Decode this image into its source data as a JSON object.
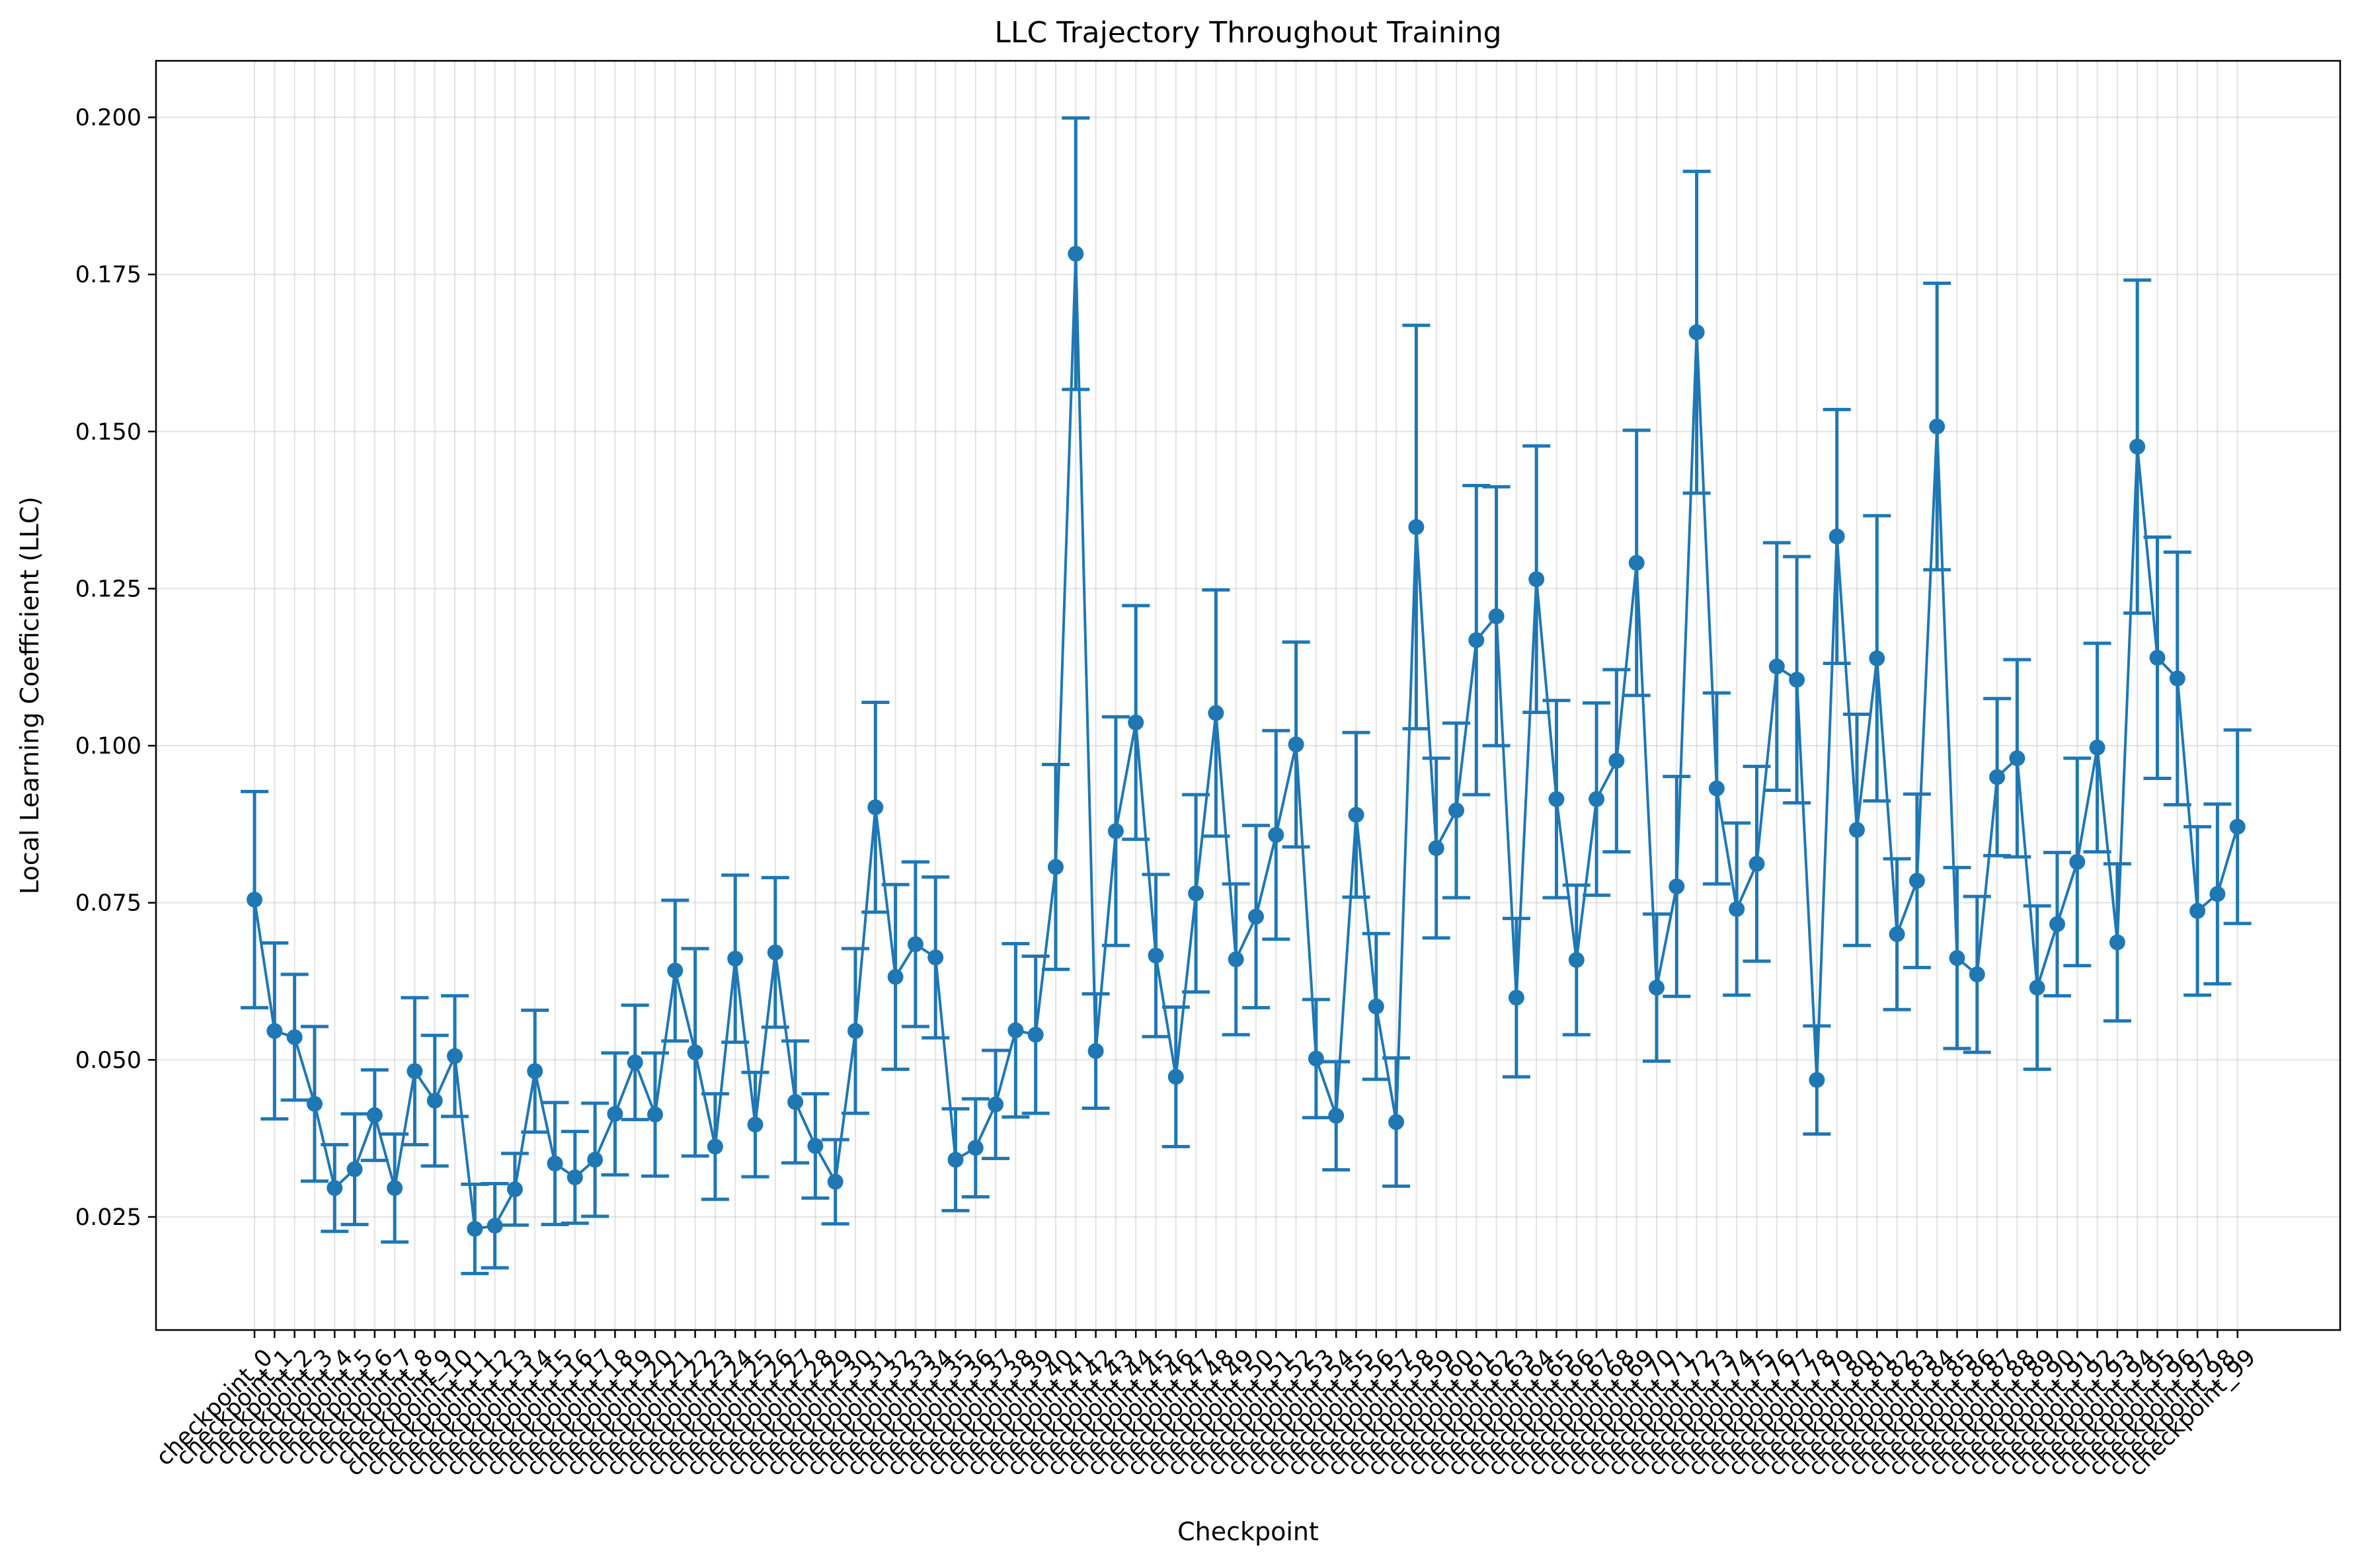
{
  "chart_data": {
    "type": "line",
    "title": "LLC Trajectory Throughout Training",
    "xlabel": "Checkpoint",
    "ylabel": "Local Learning Coefficient (LLC)",
    "ylim": [
      0.007,
      0.209
    ],
    "yticks": [
      0.025,
      0.05,
      0.075,
      0.1,
      0.125,
      0.15,
      0.175,
      0.2
    ],
    "ytick_labels": [
      "0.025",
      "0.050",
      "0.075",
      "0.100",
      "0.125",
      "0.150",
      "0.175",
      "0.200"
    ],
    "grid": true,
    "colors": {
      "series": "#1f77b4"
    },
    "categories": [
      "checkpoint_0",
      "checkpoint_1",
      "checkpoint_2",
      "checkpoint_3",
      "checkpoint_4",
      "checkpoint_5",
      "checkpoint_6",
      "checkpoint_7",
      "checkpoint_8",
      "checkpoint_9",
      "checkpoint_10",
      "checkpoint_11",
      "checkpoint_12",
      "checkpoint_13",
      "checkpoint_14",
      "checkpoint_15",
      "checkpoint_16",
      "checkpoint_17",
      "checkpoint_18",
      "checkpoint_19",
      "checkpoint_20",
      "checkpoint_21",
      "checkpoint_22",
      "checkpoint_23",
      "checkpoint_24",
      "checkpoint_25",
      "checkpoint_26",
      "checkpoint_27",
      "checkpoint_28",
      "checkpoint_29",
      "checkpoint_30",
      "checkpoint_31",
      "checkpoint_32",
      "checkpoint_33",
      "checkpoint_34",
      "checkpoint_35",
      "checkpoint_36",
      "checkpoint_37",
      "checkpoint_38",
      "checkpoint_39",
      "checkpoint_40",
      "checkpoint_41",
      "checkpoint_42",
      "checkpoint_43",
      "checkpoint_44",
      "checkpoint_45",
      "checkpoint_46",
      "checkpoint_47",
      "checkpoint_48",
      "checkpoint_49",
      "checkpoint_50",
      "checkpoint_51",
      "checkpoint_52",
      "checkpoint_53",
      "checkpoint_54",
      "checkpoint_55",
      "checkpoint_56",
      "checkpoint_57",
      "checkpoint_58",
      "checkpoint_59",
      "checkpoint_60",
      "checkpoint_61",
      "checkpoint_62",
      "checkpoint_63",
      "checkpoint_64",
      "checkpoint_65",
      "checkpoint_66",
      "checkpoint_67",
      "checkpoint_68",
      "checkpoint_69",
      "checkpoint_70",
      "checkpoint_71",
      "checkpoint_72",
      "checkpoint_73",
      "checkpoint_74",
      "checkpoint_75",
      "checkpoint_76",
      "checkpoint_77",
      "checkpoint_78",
      "checkpoint_79",
      "checkpoint_80",
      "checkpoint_81",
      "checkpoint_82",
      "checkpoint_83",
      "checkpoint_84",
      "checkpoint_85",
      "checkpoint_86",
      "checkpoint_87",
      "checkpoint_88",
      "checkpoint_89",
      "checkpoint_90",
      "checkpoint_91",
      "checkpoint_92",
      "checkpoint_93",
      "checkpoint_94",
      "checkpoint_95",
      "checkpoint_96",
      "checkpoint_97",
      "checkpoint_98",
      "checkpoint_99"
    ],
    "series": [
      {
        "values": [
          0.0755,
          0.0546,
          0.0536,
          0.043,
          0.0296,
          0.0326,
          0.0412,
          0.0296,
          0.0482,
          0.0435,
          0.0506,
          0.0231,
          0.0236,
          0.0294,
          0.0482,
          0.0335,
          0.0313,
          0.0341,
          0.0414,
          0.0496,
          0.0413,
          0.0642,
          0.0512,
          0.0362,
          0.0661,
          0.0397,
          0.0671,
          0.0433,
          0.0363,
          0.0306,
          0.0546,
          0.0902,
          0.0632,
          0.0684,
          0.0663,
          0.0341,
          0.036,
          0.0429,
          0.0547,
          0.054,
          0.0807,
          0.1783,
          0.0514,
          0.0864,
          0.1037,
          0.0666,
          0.0473,
          0.0765,
          0.1052,
          0.066,
          0.0728,
          0.0858,
          0.1002,
          0.0502,
          0.0411,
          0.089,
          0.0585,
          0.0401,
          0.1348,
          0.0837,
          0.0897,
          0.1168,
          0.1206,
          0.0599,
          0.1265,
          0.0915,
          0.0659,
          0.0915,
          0.0976,
          0.1291,
          0.0615,
          0.0776,
          0.1658,
          0.0932,
          0.074,
          0.0812,
          0.1126,
          0.1105,
          0.0468,
          0.1333,
          0.0866,
          0.1139,
          0.07,
          0.0785,
          0.1508,
          0.0662,
          0.0636,
          0.095,
          0.098,
          0.0615,
          0.0716,
          0.0815,
          0.0997,
          0.0687,
          0.1476,
          0.114,
          0.1107,
          0.0737,
          0.0764,
          0.0871
        ],
        "err": [
          0.0172,
          0.014,
          0.01,
          0.0123,
          0.0069,
          0.0088,
          0.0072,
          0.0086,
          0.0117,
          0.0104,
          0.0096,
          0.0071,
          0.0067,
          0.0057,
          0.0097,
          0.0097,
          0.0073,
          0.009,
          0.0097,
          0.0091,
          0.0098,
          0.0112,
          0.0165,
          0.0084,
          0.0133,
          0.0083,
          0.0119,
          0.0097,
          0.0083,
          0.0067,
          0.0131,
          0.0167,
          0.0147,
          0.0131,
          0.0128,
          0.0081,
          0.0078,
          0.0086,
          0.0138,
          0.0125,
          0.0163,
          0.0216,
          0.0091,
          0.0182,
          0.0186,
          0.0129,
          0.0111,
          0.0157,
          0.0196,
          0.012,
          0.0145,
          0.0166,
          0.0163,
          0.0094,
          0.0086,
          0.0131,
          0.0116,
          0.0102,
          0.0321,
          0.0143,
          0.0139,
          0.0246,
          0.0206,
          0.0126,
          0.0212,
          0.0157,
          0.0119,
          0.0153,
          0.0145,
          0.0211,
          0.0117,
          0.0175,
          0.0256,
          0.0152,
          0.0137,
          0.0155,
          0.0197,
          0.0196,
          0.0086,
          0.0202,
          0.0184,
          0.0227,
          0.012,
          0.0138,
          0.0228,
          0.0144,
          0.0124,
          0.0125,
          0.0157,
          0.013,
          0.0114,
          0.0165,
          0.0166,
          0.0125,
          0.0265,
          0.0192,
          0.0201,
          0.0134,
          0.0143,
          0.0154
        ]
      }
    ]
  }
}
